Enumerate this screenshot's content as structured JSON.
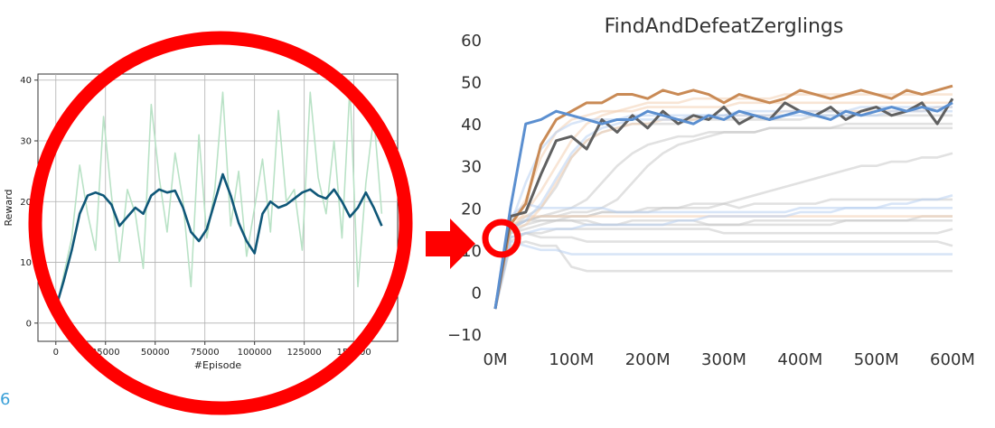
{
  "chart_data": [
    {
      "type": "line",
      "title": "",
      "xlabel": "#Episode",
      "ylabel": "Reward",
      "xlim": [
        -9000,
        172000
      ],
      "ylim": [
        -3,
        41
      ],
      "x_ticks": [
        0,
        25000,
        50000,
        75000,
        100000,
        125000,
        150000
      ],
      "x_tick_labels": [
        "0",
        "25000",
        "50000",
        "75000",
        "100000",
        "125000",
        "150000"
      ],
      "y_ticks": [
        0,
        10,
        20,
        30,
        40
      ],
      "y_tick_labels": [
        "0",
        "10",
        "20",
        "30",
        "40"
      ],
      "grid": true,
      "legend": "none",
      "series": [
        {
          "role": "raw",
          "color": "#b9e2c6",
          "x": [
            0,
            4000,
            8000,
            12000,
            16000,
            20000,
            24000,
            28000,
            32000,
            36000,
            40000,
            44000,
            48000,
            52000,
            56000,
            60000,
            64000,
            68000,
            72000,
            76000,
            80000,
            84000,
            88000,
            92000,
            96000,
            100000,
            104000,
            108000,
            112000,
            116000,
            120000,
            124000,
            128000,
            132000,
            136000,
            140000,
            144000,
            148000,
            152000,
            156000,
            160000,
            164000
          ],
          "values": [
            2,
            8,
            14,
            26,
            18,
            12,
            34,
            21,
            10,
            22,
            18,
            9,
            36,
            24,
            15,
            28,
            20,
            6,
            31,
            14,
            22,
            38,
            16,
            25,
            11,
            19,
            27,
            15,
            35,
            20,
            22,
            12,
            38,
            24,
            18,
            30,
            14,
            39,
            6,
            23,
            34,
            18
          ]
        },
        {
          "role": "smoothed",
          "color": "#0f5778",
          "x": [
            0,
            4000,
            8000,
            12000,
            16000,
            20000,
            24000,
            28000,
            32000,
            36000,
            40000,
            44000,
            48000,
            52000,
            56000,
            60000,
            64000,
            68000,
            72000,
            76000,
            80000,
            84000,
            88000,
            92000,
            96000,
            100000,
            104000,
            108000,
            112000,
            116000,
            120000,
            124000,
            128000,
            132000,
            136000,
            140000,
            144000,
            148000,
            152000,
            156000,
            160000,
            164000
          ],
          "values": [
            2.5,
            7,
            12,
            18,
            21,
            21.5,
            21,
            19.5,
            16,
            17.5,
            19,
            18,
            21,
            22,
            21.5,
            21.8,
            19,
            15,
            13.5,
            15.5,
            20,
            24.5,
            21,
            16.5,
            13.5,
            11.5,
            18,
            20,
            19,
            19.5,
            20.5,
            21.5,
            22,
            21,
            20.5,
            22,
            20,
            17.5,
            19,
            21.5,
            19,
            16
          ]
        }
      ]
    },
    {
      "type": "line",
      "title": "FindAndDefeatZerglings",
      "xlabel": "",
      "ylabel": "",
      "xlim": [
        -15,
        615
      ],
      "ylim": [
        -13,
        62
      ],
      "x_ticks": [
        0,
        100,
        200,
        300,
        400,
        500,
        600
      ],
      "x_tick_labels": [
        "0M",
        "100M",
        "200M",
        "300M",
        "400M",
        "500M",
        "600M"
      ],
      "y_ticks": [
        -10,
        0,
        10,
        20,
        30,
        40,
        50,
        60
      ],
      "y_tick_labels": [
        "−10",
        "0",
        "10",
        "20",
        "30",
        "40",
        "50",
        "60"
      ],
      "grid": false,
      "legend": "none",
      "x": [
        0,
        20,
        40,
        60,
        80,
        100,
        120,
        140,
        160,
        180,
        200,
        220,
        240,
        260,
        280,
        300,
        320,
        340,
        360,
        380,
        400,
        420,
        440,
        460,
        480,
        500,
        520,
        540,
        560,
        580,
        600
      ],
      "faint_series": [
        {
          "color": "#c8c8c8",
          "values": [
            -4,
            14,
            15,
            16,
            17,
            18,
            18,
            19,
            19,
            19,
            20,
            20,
            20,
            21,
            21,
            21,
            20,
            21,
            21,
            21,
            21,
            21,
            22,
            22,
            22,
            22,
            22,
            22,
            22,
            22,
            22
          ]
        },
        {
          "color": "#c8c8c8",
          "values": [
            -4,
            12,
            14,
            13,
            13,
            13,
            12,
            12,
            12,
            12,
            12,
            12,
            12,
            12,
            12,
            12,
            12,
            12,
            12,
            12,
            12,
            12,
            12,
            12,
            12,
            12,
            12,
            12,
            12,
            12,
            11
          ]
        },
        {
          "color": "#c8c8c8",
          "values": [
            -4,
            11,
            12,
            11,
            11,
            6,
            5,
            5,
            5,
            5,
            5,
            5,
            5,
            5,
            5,
            5,
            5,
            5,
            5,
            5,
            5,
            5,
            5,
            5,
            5,
            5,
            5,
            5,
            5,
            5,
            5
          ]
        },
        {
          "color": "#c8c8c8",
          "values": [
            -4,
            16,
            17,
            17,
            17,
            17,
            16,
            16,
            16,
            17,
            17,
            17,
            17,
            17,
            16,
            16,
            16,
            16,
            16,
            16,
            16,
            16,
            16,
            17,
            17,
            17,
            17,
            17,
            18,
            18,
            18
          ]
        },
        {
          "color": "#c8c8c8",
          "values": [
            -4,
            13,
            14,
            14,
            15,
            15,
            15,
            15,
            15,
            15,
            15,
            15,
            15,
            15,
            15,
            14,
            14,
            14,
            14,
            14,
            14,
            14,
            14,
            14,
            14,
            14,
            14,
            14,
            14,
            14,
            15
          ]
        },
        {
          "color": "#c8c8c8",
          "values": [
            -4,
            15,
            18,
            20,
            25,
            32,
            36,
            38,
            39,
            40,
            40,
            40,
            40,
            41,
            41,
            41,
            41,
            41,
            41,
            41,
            41,
            42,
            42,
            42,
            42,
            42,
            42,
            42,
            42,
            42,
            42
          ]
        },
        {
          "color": "#c8c8c8",
          "values": [
            -4,
            15,
            17,
            18,
            18,
            19,
            19,
            20,
            22,
            26,
            30,
            33,
            35,
            36,
            37,
            38,
            38,
            38,
            39,
            39,
            39,
            39,
            39,
            40,
            40,
            40,
            40,
            40,
            40,
            40,
            40
          ]
        },
        {
          "color": "#c8c8c8",
          "values": [
            -4,
            15,
            17,
            18,
            18,
            18,
            18,
            19,
            19,
            19,
            19,
            20,
            20,
            20,
            20,
            21,
            22,
            23,
            24,
            25,
            26,
            27,
            28,
            29,
            30,
            30,
            31,
            31,
            32,
            32,
            33
          ]
        },
        {
          "color": "#c8c8c8",
          "values": [
            -4,
            15,
            17,
            18,
            19,
            20,
            22,
            26,
            30,
            33,
            35,
            36,
            37,
            37,
            38,
            38,
            38,
            38,
            39,
            39,
            39,
            39,
            39,
            39,
            39,
            39,
            39,
            39,
            39,
            39,
            39
          ]
        },
        {
          "color": "#c8c8c8",
          "values": [
            -4,
            14,
            16,
            17,
            17,
            17,
            17,
            16,
            16,
            16,
            16,
            16,
            16,
            16,
            16,
            16,
            16,
            17,
            17,
            17,
            17,
            17,
            17,
            17,
            17,
            17,
            17,
            17,
            17,
            17,
            17
          ]
        },
        {
          "color": "#f3cfb3",
          "values": [
            -4,
            16,
            22,
            32,
            38,
            41,
            42,
            43,
            43,
            43,
            44,
            44,
            44,
            44,
            44,
            44,
            45,
            45,
            45,
            45,
            45,
            45,
            45,
            45,
            45,
            45,
            45,
            45,
            45,
            45,
            45
          ]
        },
        {
          "color": "#f3cfb3",
          "values": [
            -4,
            15,
            19,
            24,
            30,
            36,
            40,
            42,
            43,
            44,
            45,
            45,
            45,
            46,
            46,
            46,
            46,
            46,
            46,
            47,
            47,
            47,
            47,
            47,
            47,
            47,
            47,
            47,
            47,
            47,
            47
          ]
        },
        {
          "color": "#f3cfb3",
          "values": [
            -4,
            17,
            18,
            18,
            18,
            18,
            18,
            18,
            18,
            18,
            18,
            18,
            18,
            18,
            18,
            18,
            18,
            18,
            18,
            18,
            18,
            18,
            18,
            18,
            18,
            18,
            18,
            18,
            18,
            18,
            18
          ]
        },
        {
          "color": "#f3cfb3",
          "values": [
            -4,
            15,
            16,
            20,
            26,
            32,
            36,
            38,
            39,
            40,
            40,
            41,
            41,
            41,
            42,
            42,
            42,
            42,
            42,
            43,
            43,
            43,
            43,
            43,
            43,
            43,
            43,
            43,
            43,
            44,
            44
          ]
        },
        {
          "color": "#b8cff0",
          "values": [
            -4,
            12,
            11,
            10,
            10,
            9,
            9,
            9,
            9,
            9,
            9,
            9,
            9,
            9,
            9,
            9,
            9,
            9,
            9,
            9,
            9,
            9,
            9,
            9,
            9,
            9,
            9,
            9,
            9,
            9,
            9
          ]
        },
        {
          "color": "#b8cff0",
          "values": [
            -4,
            18,
            21,
            20,
            20,
            20,
            20,
            20,
            19,
            19,
            19,
            19,
            19,
            19,
            19,
            19,
            19,
            19,
            19,
            19,
            20,
            20,
            20,
            20,
            20,
            20,
            20,
            20,
            20,
            20,
            20
          ]
        },
        {
          "color": "#b8cff0",
          "values": [
            -4,
            15,
            17,
            21,
            27,
            33,
            37,
            39,
            40,
            41,
            41,
            41,
            41,
            42,
            42,
            42,
            42,
            42,
            42,
            42,
            42,
            42,
            42,
            42,
            42,
            42,
            43,
            43,
            43,
            43,
            43
          ]
        },
        {
          "color": "#b8cff0",
          "values": [
            -4,
            13,
            14,
            15,
            15,
            15,
            16,
            16,
            16,
            16,
            16,
            16,
            17,
            17,
            18,
            18,
            18,
            18,
            18,
            18,
            19,
            19,
            19,
            20,
            20,
            20,
            21,
            21,
            22,
            22,
            23
          ]
        },
        {
          "color": "#b8cff0",
          "values": [
            -4,
            16,
            26,
            34,
            38,
            40,
            41,
            41,
            41,
            42,
            42,
            42,
            42,
            42,
            42,
            42,
            43,
            43,
            43,
            43,
            43,
            43,
            43,
            43,
            44,
            44,
            44,
            44,
            44,
            44,
            44
          ]
        }
      ],
      "highlight_series": [
        {
          "color": "#c98a55",
          "values": [
            -4,
            16,
            21,
            35,
            41,
            43,
            45,
            45,
            47,
            47,
            46,
            48,
            47,
            48,
            47,
            45,
            47,
            46,
            45,
            46,
            48,
            47,
            46,
            47,
            48,
            47,
            46,
            48,
            47,
            48,
            49
          ]
        },
        {
          "color": "#606060",
          "values": [
            -4,
            18,
            19,
            28,
            36,
            37,
            34,
            41,
            38,
            42,
            39,
            43,
            40,
            42,
            41,
            44,
            40,
            42,
            41,
            45,
            43,
            42,
            44,
            41,
            43,
            44,
            42,
            43,
            45,
            40,
            46
          ]
        },
        {
          "color": "#5b8fd0",
          "values": [
            -4,
            20,
            40,
            41,
            43,
            42,
            41,
            40,
            41,
            41,
            43,
            42,
            41,
            40,
            42,
            41,
            43,
            42,
            41,
            42,
            43,
            42,
            41,
            43,
            42,
            43,
            44,
            43,
            44,
            43,
            45
          ]
        }
      ]
    }
  ],
  "annotation": {
    "arrow_color": "#ff0000",
    "circle_color": "#ff0000",
    "corner_mark": "6"
  }
}
